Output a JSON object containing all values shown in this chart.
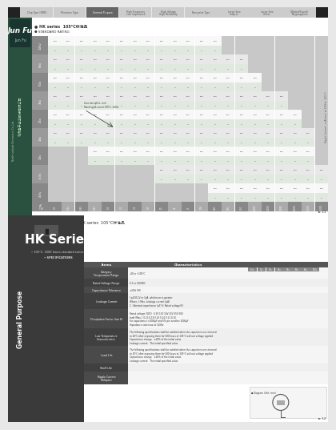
{
  "nav_tabs": [
    "Chip Type (SMD)",
    "Miniature Type",
    "General Purpose",
    "High Frequency\nLow Impedance",
    "High Voltage\nHigh Reliability",
    "Non-polar Type",
    "Large Size\nSnap-in",
    "Large Size\nScrew",
    "X-Rated/Sound/\nPolypropylene\nFilm Capacitors"
  ],
  "active_tab_idx": 2,
  "top_title": "HK series  105℃标准品",
  "standard_rating": "● STANDARD RATING",
  "hk_bullet": "● HK series  105°C标准品",
  "company_cn": "北纬电子企业股份有限公司",
  "company_en": "North Latitude Electronics Co.,Ltd.",
  "brand_name": "Jun Fu",
  "page_num_top": "► 11",
  "page_num_bot": "► 12",
  "ripple_note": "Ripple Current : mA(rms) at 120Hz, 105°C",
  "hk_series_bot_title": "HK series  105°C标准品",
  "general_purpose_label": "General Purpose",
  "hk_series_big": "HK Series",
  "bullet_105": "• 105°C, 1000 hours standard series.",
  "bullet_spec": "• SPECIFICATIONS",
  "volt_rows": [
    "100v",
    "63v",
    "50v",
    "35v",
    "25v",
    "16v",
    "10v",
    "6.3v",
    "4.5v"
  ],
  "cap_cols": [
    "0.1",
    "0.22",
    "0.33",
    "0.47",
    "1.0",
    "2.2",
    "3.3",
    "4.7",
    "10",
    "22",
    "47",
    "100",
    "220",
    "330",
    "470",
    "1,000",
    "2,200",
    "3,300",
    "4,700",
    "10,000",
    "15,000"
  ],
  "annotation_text": "Case size (φD×L, mm)\nRated ripple current 105°C, 120Hz",
  "spec_items": [
    "Category\nTemperature Range",
    "Rated Voltage Range",
    "Capacitance Tolerance",
    "Leakage Current",
    "Dissipation Factor (tan δ)",
    "Low Temperature\nCharacteristics",
    "Load Life",
    "Shelf Life",
    "Ripple Current\nMultiplier"
  ],
  "spec_chars": [
    "-40 to +105°C",
    "6.3 to 100VDC",
    "±20% (M)",
    "I ≤0.01CV or 3μA, whichever is greater\nWhere, I: Max. Leakage current (μA)\nC : Nominal capacitance (μF) V: Rated voltage(V)",
    "Rated voltage (VDC)  6.3V 10V 16V 25V 35V 50V\ntanδ (Max.)  0.22 0.19 0.16 0.14 0.12 0.10\nFor capacitance >1000μF and 5% per another 1000μF\nImpedance ratio max at 120Hz",
    "The following specifications shall be satisfied when the capacitors are returned\nto 20°C after exposing them for 500 hours at 105°C without voltage applied\nCapacitance change   ±20% of the initial value\nLeakage current   The initial specified value",
    "The following specifications shall be satisfied when the capacitors are returned\nto 20°C after exposing them for 500 hours at 105°C without voltage applied\nCapacitance change   ±20% of the initial value\nLeakage current   The initial specified value",
    "",
    ""
  ],
  "spec_heights": [
    14,
    10,
    8,
    20,
    24,
    22,
    22,
    10,
    16
  ],
  "bg_page": "#e8e8e8",
  "bg_white": "#ffffff",
  "sidebar_green": "#2a5040",
  "sidebar_dark_bot": "#3a3a3a",
  "tab_active": "#666666",
  "tab_inactive": "#cccccc",
  "header_gray": "#888888",
  "row_light": "#f0f0f0",
  "row_dark": "#e0e0e0",
  "cell_light": "#f8f8f8",
  "cell_mid": "#e8e8e8",
  "cell_gray": "#c8c8c8",
  "text_dark": "#333333",
  "text_white": "#ffffff",
  "text_gray": "#888888"
}
